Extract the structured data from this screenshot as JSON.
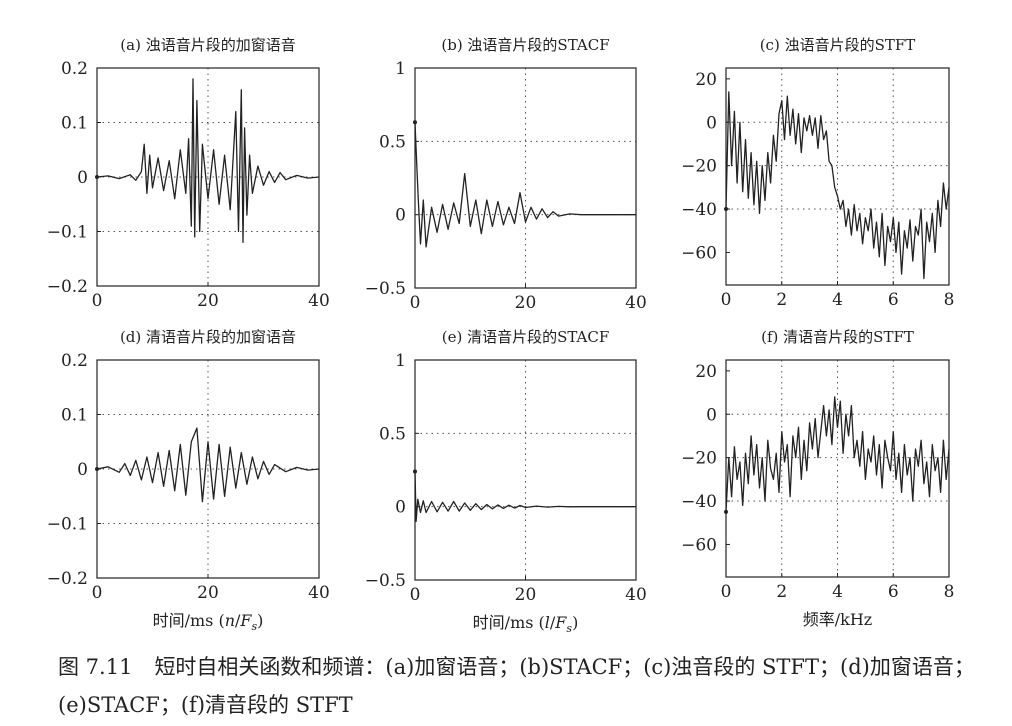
{
  "caption": {
    "label": "图 7.11",
    "text": "短时自相关函数和频谱：(a)加窗语音；(b)STACF；(c)浊音段的 STFT；(d)加窗语音；(e)STACF；(f)清音段的 STFT"
  },
  "chart_data": [
    {
      "id": "a",
      "type": "line",
      "title": "(a) 浊语音片段的加窗语音",
      "xlim": [
        0,
        40
      ],
      "ylim": [
        -0.2,
        0.2
      ],
      "xticks": [
        0,
        20,
        40
      ],
      "xtick_labels": [
        "0",
        "20",
        "40"
      ],
      "yticks": [
        -0.2,
        -0.1,
        0,
        0.1,
        0.2
      ],
      "ytick_labels": [
        "−0.2",
        "−0.1",
        "0",
        "0.1",
        "0.2"
      ],
      "grid": "dotted",
      "xlabel": "",
      "ylabel": "",
      "series": [
        {
          "x": [
            0,
            2,
            4,
            6,
            7,
            8,
            8.5,
            9,
            9.5,
            10,
            11,
            12,
            13,
            14,
            15,
            16,
            16.5,
            17,
            17.3,
            17.6,
            18,
            18.5,
            19,
            20,
            21,
            22,
            23,
            24,
            25,
            25.5,
            26,
            26.3,
            26.6,
            27,
            27.5,
            28,
            29,
            30,
            31,
            32,
            33,
            34,
            36,
            38,
            40
          ],
          "y": [
            0,
            0.002,
            -0.003,
            0.004,
            -0.006,
            0.01,
            0.06,
            -0.03,
            0.04,
            -0.02,
            0.035,
            -0.025,
            0.03,
            -0.04,
            0.05,
            -0.03,
            0.07,
            -0.09,
            0.18,
            -0.11,
            0.14,
            -0.1,
            0.06,
            -0.04,
            0.05,
            -0.05,
            0.04,
            -0.06,
            0.12,
            -0.1,
            0.16,
            -0.12,
            0.09,
            -0.07,
            0.04,
            -0.03,
            0.02,
            -0.015,
            0.01,
            -0.01,
            0.008,
            -0.005,
            0.003,
            -0.002,
            0
          ]
        }
      ]
    },
    {
      "id": "b",
      "type": "line",
      "title": "(b) 浊语音片段的STACF",
      "xlim": [
        0,
        40
      ],
      "ylim": [
        -0.5,
        1
      ],
      "xticks": [
        0,
        20,
        40
      ],
      "xtick_labels": [
        "0",
        "20",
        "40"
      ],
      "yticks": [
        -0.5,
        0,
        0.5,
        1
      ],
      "ytick_labels": [
        "−0.5",
        "0",
        "0.5",
        "1"
      ],
      "grid": "dotted",
      "xlabel": "",
      "ylabel": "",
      "series": [
        {
          "x": [
            0,
            0.3,
            0.6,
            1,
            1.5,
            2,
            3,
            4,
            5,
            6,
            7,
            8,
            9,
            10,
            11,
            12,
            13,
            14,
            15,
            16,
            17,
            18,
            19,
            20,
            21,
            22,
            23,
            24,
            25,
            26,
            28,
            30,
            35,
            40
          ],
          "y": [
            0.63,
            0.35,
            0.1,
            -0.2,
            0.1,
            -0.22,
            0.05,
            -0.12,
            0.07,
            -0.1,
            0.08,
            -0.06,
            0.28,
            -0.08,
            0.1,
            -0.13,
            0.1,
            -0.08,
            0.09,
            -0.07,
            0.05,
            -0.06,
            0.15,
            -0.05,
            0.05,
            -0.03,
            0.04,
            -0.02,
            0.02,
            -0.01,
            0.005,
            0,
            0,
            0
          ]
        }
      ]
    },
    {
      "id": "c",
      "type": "line",
      "title": "(c) 浊语音片段的STFT",
      "xlim": [
        0,
        8
      ],
      "ylim": [
        -75,
        25
      ],
      "xticks": [
        0,
        2,
        4,
        6,
        8
      ],
      "xtick_labels": [
        "0",
        "2",
        "4",
        "6",
        "8"
      ],
      "yticks": [
        -60,
        -40,
        -20,
        0,
        20
      ],
      "ytick_labels": [
        "−60",
        "−40",
        "−20",
        "0",
        "20"
      ],
      "grid": "dotted",
      "xlabel": "",
      "ylabel": "",
      "series": [
        {
          "x": [
            0,
            0.1,
            0.2,
            0.3,
            0.4,
            0.5,
            0.6,
            0.7,
            0.8,
            0.9,
            1,
            1.1,
            1.2,
            1.3,
            1.4,
            1.5,
            1.6,
            1.7,
            1.8,
            1.9,
            2,
            2.1,
            2.2,
            2.3,
            2.4,
            2.5,
            2.6,
            2.7,
            2.8,
            2.9,
            3,
            3.1,
            3.2,
            3.3,
            3.4,
            3.5,
            3.6,
            3.7,
            3.8,
            3.9,
            4,
            4.1,
            4.2,
            4.3,
            4.4,
            4.5,
            4.6,
            4.7,
            4.8,
            4.9,
            5,
            5.1,
            5.2,
            5.3,
            5.4,
            5.5,
            5.6,
            5.7,
            5.8,
            5.9,
            6,
            6.1,
            6.2,
            6.3,
            6.4,
            6.5,
            6.6,
            6.7,
            6.8,
            6.9,
            7,
            7.1,
            7.2,
            7.3,
            7.4,
            7.5,
            7.6,
            7.7,
            7.8,
            7.9,
            8
          ],
          "y": [
            -40,
            14,
            -20,
            5,
            -28,
            0,
            -32,
            -8,
            -35,
            -14,
            -38,
            -18,
            -42,
            -20,
            -36,
            -14,
            -28,
            -6,
            -18,
            4,
            10,
            -8,
            12,
            -6,
            6,
            -10,
            4,
            -14,
            2,
            -4,
            3,
            -6,
            2,
            -12,
            3,
            -8,
            -4,
            -18,
            -20,
            -30,
            -34,
            -40,
            -36,
            -48,
            -40,
            -52,
            -38,
            -50,
            -42,
            -56,
            -44,
            -50,
            -40,
            -58,
            -46,
            -62,
            -42,
            -66,
            -48,
            -55,
            -44,
            -60,
            -46,
            -70,
            -50,
            -58,
            -45,
            -64,
            -48,
            -52,
            -40,
            -72,
            -46,
            -55,
            -42,
            -60,
            -36,
            -48,
            -28,
            -40,
            -30
          ]
        }
      ]
    },
    {
      "id": "d",
      "type": "line",
      "title": "(d) 清语音片段的加窗语音",
      "xlim": [
        0,
        40
      ],
      "ylim": [
        -0.2,
        0.2
      ],
      "xticks": [
        0,
        20,
        40
      ],
      "xtick_labels": [
        "0",
        "20",
        "40"
      ],
      "yticks": [
        -0.2,
        -0.1,
        0,
        0.1,
        0.2
      ],
      "ytick_labels": [
        "−0.2",
        "−0.1",
        "0",
        "0.1",
        "0.2"
      ],
      "grid": "dotted",
      "xlabel": "时间/ms (n/F_s)",
      "ylabel": "",
      "series": [
        {
          "x": [
            0,
            2,
            4,
            5,
            6,
            7,
            8,
            9,
            10,
            11,
            12,
            13,
            14,
            15,
            16,
            17,
            18,
            19,
            20,
            21,
            22,
            23,
            24,
            25,
            26,
            27,
            28,
            29,
            30,
            31,
            32,
            34,
            36,
            38,
            40
          ],
          "y": [
            0,
            0.004,
            -0.006,
            0.01,
            -0.012,
            0.016,
            -0.02,
            0.022,
            -0.025,
            0.03,
            -0.032,
            0.034,
            -0.04,
            0.045,
            -0.048,
            0.05,
            0.075,
            -0.06,
            0.05,
            -0.055,
            0.045,
            -0.05,
            0.04,
            -0.035,
            0.03,
            -0.028,
            0.022,
            -0.018,
            0.014,
            -0.01,
            0.008,
            -0.005,
            0.003,
            -0.002,
            0
          ]
        }
      ]
    },
    {
      "id": "e",
      "type": "line",
      "title": "(e) 清语音片段的STACF",
      "xlim": [
        0,
        40
      ],
      "ylim": [
        -0.5,
        1
      ],
      "xticks": [
        0,
        20,
        40
      ],
      "xtick_labels": [
        "0",
        "20",
        "40"
      ],
      "yticks": [
        -0.5,
        0,
        0.5,
        1
      ],
      "ytick_labels": [
        "−0.5",
        "0",
        "0.5",
        "1"
      ],
      "grid": "dotted",
      "xlabel": "时间/ms (l/F_s)",
      "ylabel": "",
      "series": [
        {
          "x": [
            0,
            0.2,
            0.5,
            1,
            1.5,
            2,
            3,
            4,
            5,
            6,
            7,
            8,
            9,
            10,
            11,
            12,
            13,
            14,
            15,
            16,
            17,
            18,
            19,
            20,
            22,
            24,
            26,
            28,
            30,
            35,
            40
          ],
          "y": [
            0.24,
            -0.1,
            0.05,
            -0.04,
            0.04,
            -0.04,
            0.035,
            -0.035,
            0.03,
            -0.03,
            0.035,
            -0.03,
            0.025,
            -0.025,
            0.02,
            -0.02,
            0.015,
            -0.015,
            0.012,
            -0.012,
            0.01,
            -0.01,
            0.008,
            -0.006,
            0.004,
            -0.003,
            0.002,
            -0.001,
            0,
            0,
            0
          ]
        }
      ]
    },
    {
      "id": "f",
      "type": "line",
      "title": "(f) 清语音片段的STFT",
      "xlim": [
        0,
        8
      ],
      "ylim": [
        -75,
        25
      ],
      "xticks": [
        0,
        2,
        4,
        6,
        8
      ],
      "xtick_labels": [
        "0",
        "2",
        "4",
        "6",
        "8"
      ],
      "yticks": [
        -60,
        -40,
        -20,
        0,
        20
      ],
      "ytick_labels": [
        "−60",
        "−40",
        "−20",
        "0",
        "20"
      ],
      "grid": "dotted",
      "xlabel": "频率/kHz",
      "ylabel": "",
      "series": [
        {
          "x": [
            0,
            0.1,
            0.2,
            0.3,
            0.4,
            0.5,
            0.6,
            0.7,
            0.8,
            0.9,
            1,
            1.1,
            1.2,
            1.3,
            1.4,
            1.5,
            1.6,
            1.7,
            1.8,
            1.9,
            2,
            2.1,
            2.2,
            2.3,
            2.4,
            2.5,
            2.6,
            2.7,
            2.8,
            2.9,
            3,
            3.1,
            3.2,
            3.3,
            3.4,
            3.5,
            3.6,
            3.7,
            3.8,
            3.9,
            4,
            4.1,
            4.2,
            4.3,
            4.4,
            4.5,
            4.6,
            4.7,
            4.8,
            4.9,
            5,
            5.1,
            5.2,
            5.3,
            5.4,
            5.5,
            5.6,
            5.7,
            5.8,
            5.9,
            6,
            6.1,
            6.2,
            6.3,
            6.4,
            6.5,
            6.6,
            6.7,
            6.8,
            6.9,
            7,
            7.1,
            7.2,
            7.3,
            7.4,
            7.5,
            7.6,
            7.7,
            7.8,
            7.9,
            8
          ],
          "y": [
            -45,
            -20,
            -38,
            -15,
            -30,
            -22,
            -42,
            -18,
            -32,
            -10,
            -28,
            -14,
            -34,
            -20,
            -40,
            -12,
            -25,
            -30,
            -18,
            -36,
            -8,
            -22,
            -14,
            -38,
            -10,
            -20,
            -6,
            -30,
            -12,
            -26,
            -4,
            -16,
            -2,
            -20,
            -8,
            4,
            -10,
            2,
            -14,
            8,
            -6,
            6,
            -18,
            0,
            -10,
            4,
            -20,
            -12,
            -24,
            -8,
            -30,
            -16,
            -22,
            -10,
            -28,
            -14,
            -34,
            -12,
            -20,
            -26,
            -8,
            -30,
            -18,
            -36,
            -14,
            -28,
            -20,
            -40,
            -16,
            -24,
            -12,
            -32,
            -22,
            -38,
            -14,
            -26,
            -20,
            -36,
            -12,
            -30,
            -16
          ]
        }
      ]
    }
  ]
}
